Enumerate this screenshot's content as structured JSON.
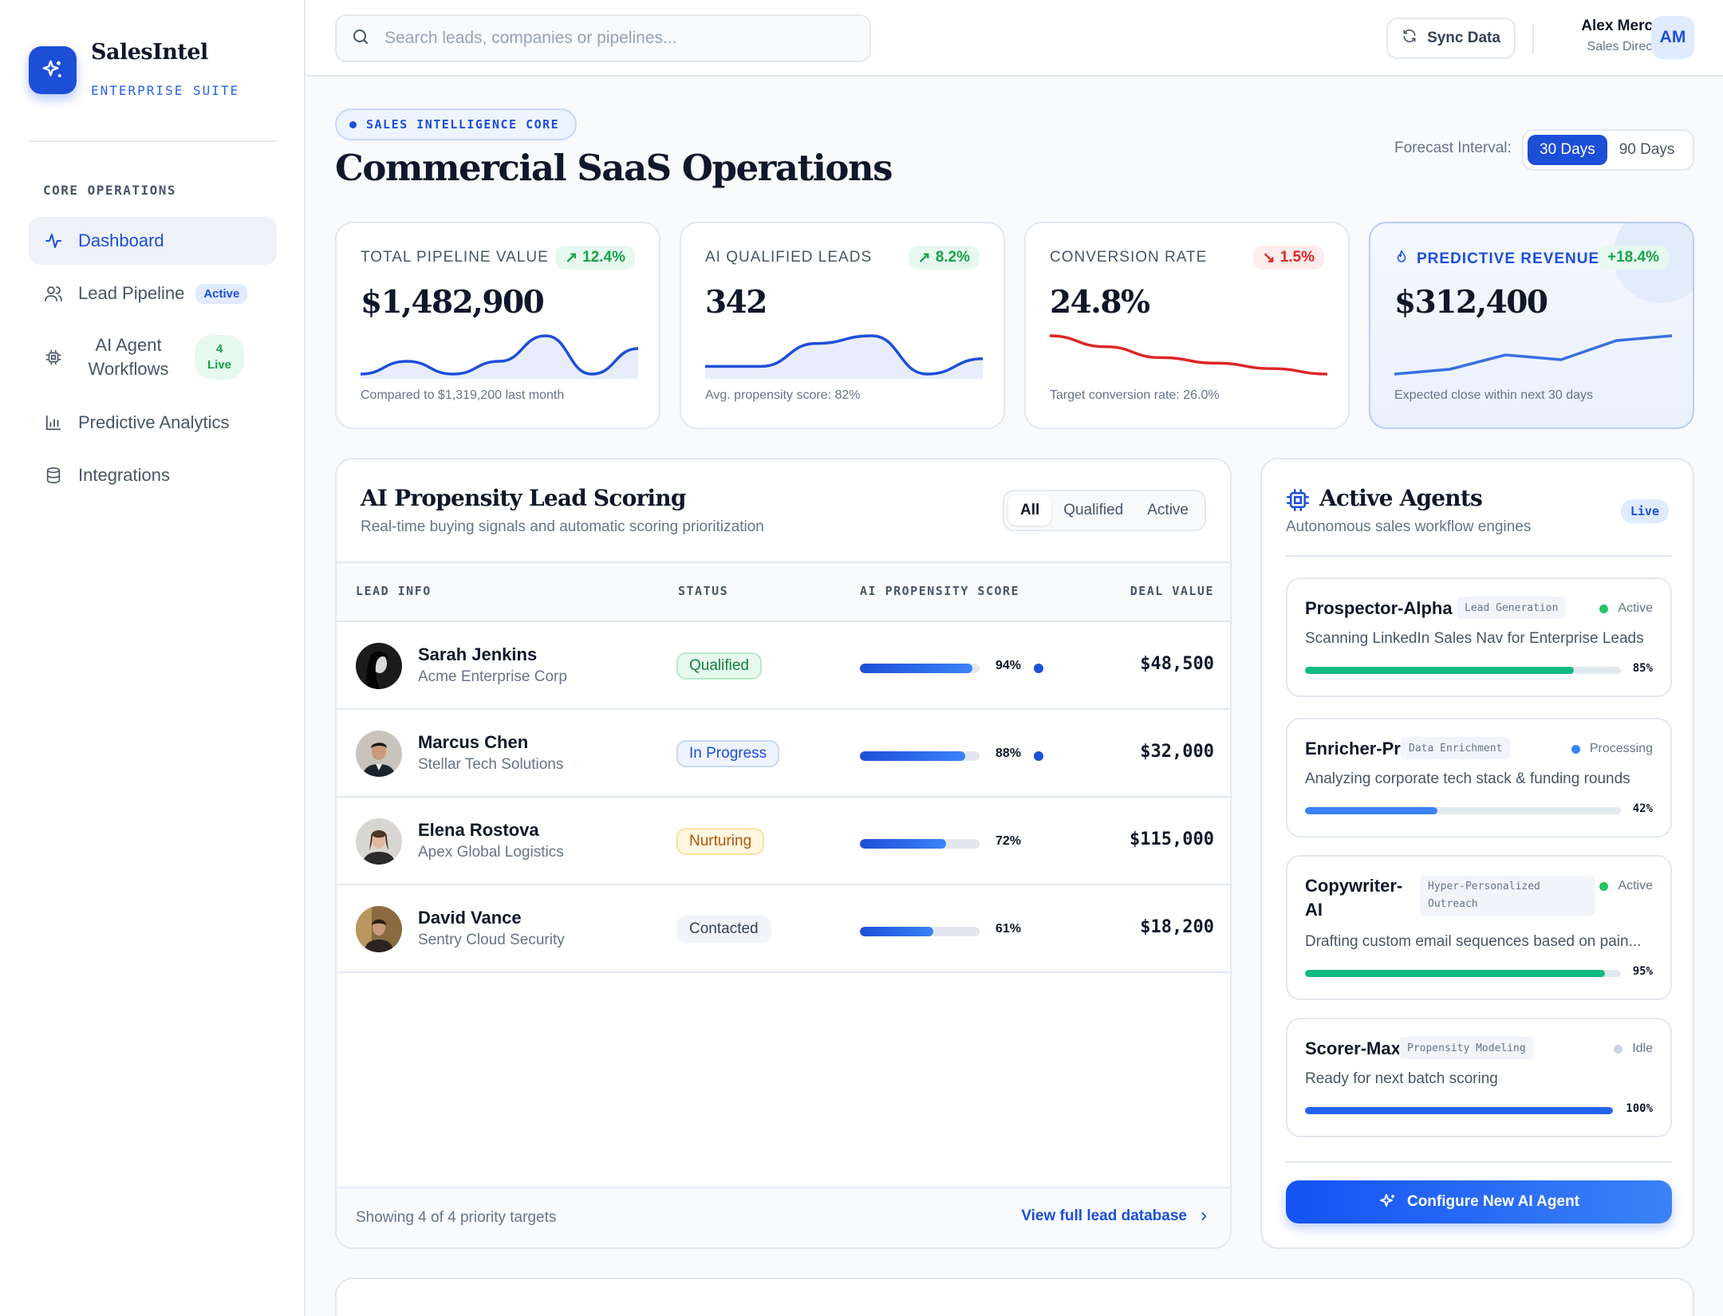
{
  "sidebar": {
    "brand_name": "SalesIntel",
    "brand_sub": "ENTERPRISE SUITE",
    "section_label": "CORE OPERATIONS",
    "items": [
      {
        "label": "Dashboard",
        "icon": "activity-icon",
        "active": true
      },
      {
        "label": "Lead Pipeline",
        "icon": "users-icon",
        "badge": "Active"
      },
      {
        "label": "AI Agent\nWorkflows",
        "icon": "cpu-icon",
        "badge": "4\nLive"
      },
      {
        "label": "Predictive Analytics",
        "icon": "bar-chart-icon"
      },
      {
        "label": "Integrations",
        "icon": "database-icon"
      }
    ]
  },
  "topbar": {
    "search_placeholder": "Search leads, companies or pipelines...",
    "sync_label": "Sync Data",
    "user_name": "Alex Mercer",
    "user_role": "Sales Director",
    "user_initials": "AM"
  },
  "header": {
    "tag": "SALES INTELLIGENCE CORE",
    "title": "Commercial SaaS Operations",
    "forecast_label": "Forecast Interval:",
    "forecast_options": [
      "30 Days",
      "90 Days"
    ],
    "forecast_selected": "30 Days"
  },
  "kpis": [
    {
      "label": "TOTAL PIPELINE VALUE",
      "delta": "12.4%",
      "trend": "up",
      "value": "$1,482,900",
      "footnote": "Compared to $1,319,200 last month",
      "sparkline": [
        3,
        5,
        3,
        5,
        9,
        3,
        7
      ]
    },
    {
      "label": "AI QUALIFIED LEADS",
      "delta": "8.2%",
      "trend": "up",
      "value": "342",
      "footnote": "Avg. propensity score: 82%",
      "sparkline": [
        4,
        4,
        7,
        8,
        3,
        5
      ]
    },
    {
      "label": "CONVERSION RATE",
      "delta": "1.5%",
      "trend": "down",
      "value": "24.8%",
      "footnote": "Target conversion rate: 26.0%",
      "sparkline": [
        9,
        7,
        5,
        4,
        3,
        2
      ]
    },
    {
      "label": "PREDICTIVE REVENUE",
      "delta": "+18.4%",
      "trend": "up",
      "value": "$312,400",
      "footnote": "Expected close within next 30 days",
      "sparkline": [
        1,
        2,
        5,
        4,
        8,
        9
      ]
    }
  ],
  "leads": {
    "title": "AI Propensity Lead Scoring",
    "subtitle": "Real-time buying signals and automatic scoring prioritization",
    "filters": [
      "All",
      "Qualified",
      "Active"
    ],
    "filter_selected": "All",
    "columns": [
      "LEAD INFO",
      "STATUS",
      "AI PROPENSITY SCORE",
      "DEAL VALUE"
    ],
    "rows": [
      {
        "name": "Sarah Jenkins",
        "company": "Acme Enterprise Corp",
        "status": "Qualified",
        "score": 94,
        "score_label": "94%",
        "hot": true,
        "deal": "$48,500"
      },
      {
        "name": "Marcus Chen",
        "company": "Stellar Tech Solutions",
        "status": "In Progress",
        "score": 88,
        "score_label": "88%",
        "hot": true,
        "deal": "$32,000"
      },
      {
        "name": "Elena Rostova",
        "company": "Apex Global Logistics",
        "status": "Nurturing",
        "score": 72,
        "score_label": "72%",
        "hot": false,
        "deal": "$115,000"
      },
      {
        "name": "David Vance",
        "company": "Sentry Cloud Security",
        "status": "Contacted",
        "score": 61,
        "score_label": "61%",
        "hot": false,
        "deal": "$18,200"
      }
    ],
    "footer_text": "Showing 4 of 4 priority targets",
    "footer_link": "View full lead database"
  },
  "agents": {
    "title": "Active Agents",
    "subtitle": "Autonomous sales workflow engines",
    "live_label": "Live",
    "items": [
      {
        "name": "Prospector-Alpha",
        "tag": "Lead Generation",
        "status": "Active",
        "status_color": "#22c55e",
        "desc": "Scanning LinkedIn Sales Nav for Enterprise Leads",
        "progress": 0.85,
        "progress_label": "85%",
        "bar_color": "#10b981"
      },
      {
        "name": "Enricher-Pro",
        "tag": "Data Enrichment",
        "status": "Processing",
        "status_color": "#3b82f6",
        "desc": "Analyzing corporate tech stack & funding rounds",
        "progress": 0.42,
        "progress_label": "42%",
        "bar_color": "#3b82f6"
      },
      {
        "name": "Copywriter-AI",
        "tag": "Hyper-Personalized Outreach",
        "status": "Active",
        "status_color": "#22c55e",
        "desc": "Drafting custom email sequences based on pain...",
        "progress": 0.95,
        "progress_label": "95%",
        "bar_color": "#10b981"
      },
      {
        "name": "Scorer-Max",
        "tag": "Propensity Modeling",
        "status": "Idle",
        "status_color": "#cbd5e1",
        "desc": "Ready for next batch scoring",
        "progress": 1.0,
        "progress_label": "100%",
        "bar_color": "#2563eb"
      }
    ],
    "cta_label": "Configure New AI Agent"
  },
  "colors": {
    "accent": "#1d4ed8",
    "success": "#16a34a",
    "danger": "#dc2626"
  }
}
